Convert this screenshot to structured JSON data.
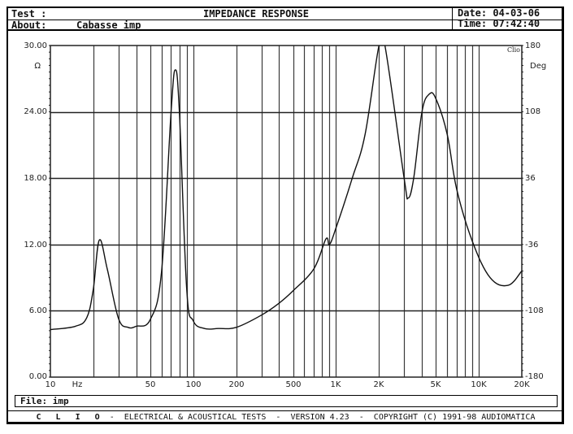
{
  "header": {
    "test_label": "Test :",
    "title": "IMPEDANCE RESPONSE",
    "about_label": "About:",
    "about_value": "Cabasse imp",
    "date_label": "Date:",
    "date_value": "04-03-06",
    "time_label": "Time:",
    "time_value": "07:42:40"
  },
  "axes": {
    "left_unit": "Ω",
    "right_unit": "Deg",
    "x_unit": "Hz",
    "logo": "Clio",
    "left_ticks": [
      "30.00",
      "24.00",
      "18.00",
      "12.00",
      "6.00",
      "0.00"
    ],
    "right_ticks": [
      "180",
      "108",
      "36",
      "-36",
      "-108",
      "-180"
    ],
    "x_ticks": [
      "10",
      "50",
      "100",
      "200",
      "500",
      "1K",
      "2K",
      "5K",
      "10K",
      "20K"
    ]
  },
  "file": {
    "label": "File:",
    "value": "imp"
  },
  "footer": {
    "brand": "C L I O",
    "text": " -  ELECTRICAL & ACOUSTICAL TESTS  -  VERSION 4.23  -  COPYRIGHT (C) 1991-98 AUDIOMATICA"
  },
  "chart_data": {
    "type": "line",
    "title": "IMPEDANCE RESPONSE",
    "xlabel": "Hz",
    "ylabel": "Ω",
    "y2label": "Deg",
    "xscale": "log",
    "xlim": [
      10,
      20000
    ],
    "ylim": [
      0,
      30
    ],
    "y2lim": [
      -180,
      180
    ],
    "grid": true,
    "series": [
      {
        "name": "Impedance magnitude (Ω)",
        "x": [
          10,
          15,
          18,
          20,
          22,
          25,
          30,
          35,
          40,
          50,
          60,
          70,
          75,
          80,
          90,
          100,
          120,
          150,
          200,
          300,
          400,
          500,
          700,
          850,
          900,
          1000,
          1300,
          1600,
          2000,
          2200,
          3000,
          3200,
          3500,
          4000,
          4500,
          5000,
          6000,
          7000,
          9000,
          12000,
          16000,
          20000
        ],
        "y": [
          4.3,
          4.6,
          5.4,
          8.0,
          12.4,
          9.8,
          5.3,
          4.5,
          4.6,
          5.2,
          9.5,
          24.0,
          27.8,
          24.0,
          8.0,
          5.1,
          4.4,
          4.4,
          4.5,
          5.6,
          6.7,
          7.8,
          9.8,
          12.5,
          12.0,
          13.5,
          18.0,
          22.0,
          30.0,
          30.0,
          18.0,
          16.2,
          18.0,
          24.0,
          25.6,
          25.2,
          22.0,
          17.0,
          12.3,
          9.0,
          8.3,
          9.6
        ]
      }
    ]
  }
}
